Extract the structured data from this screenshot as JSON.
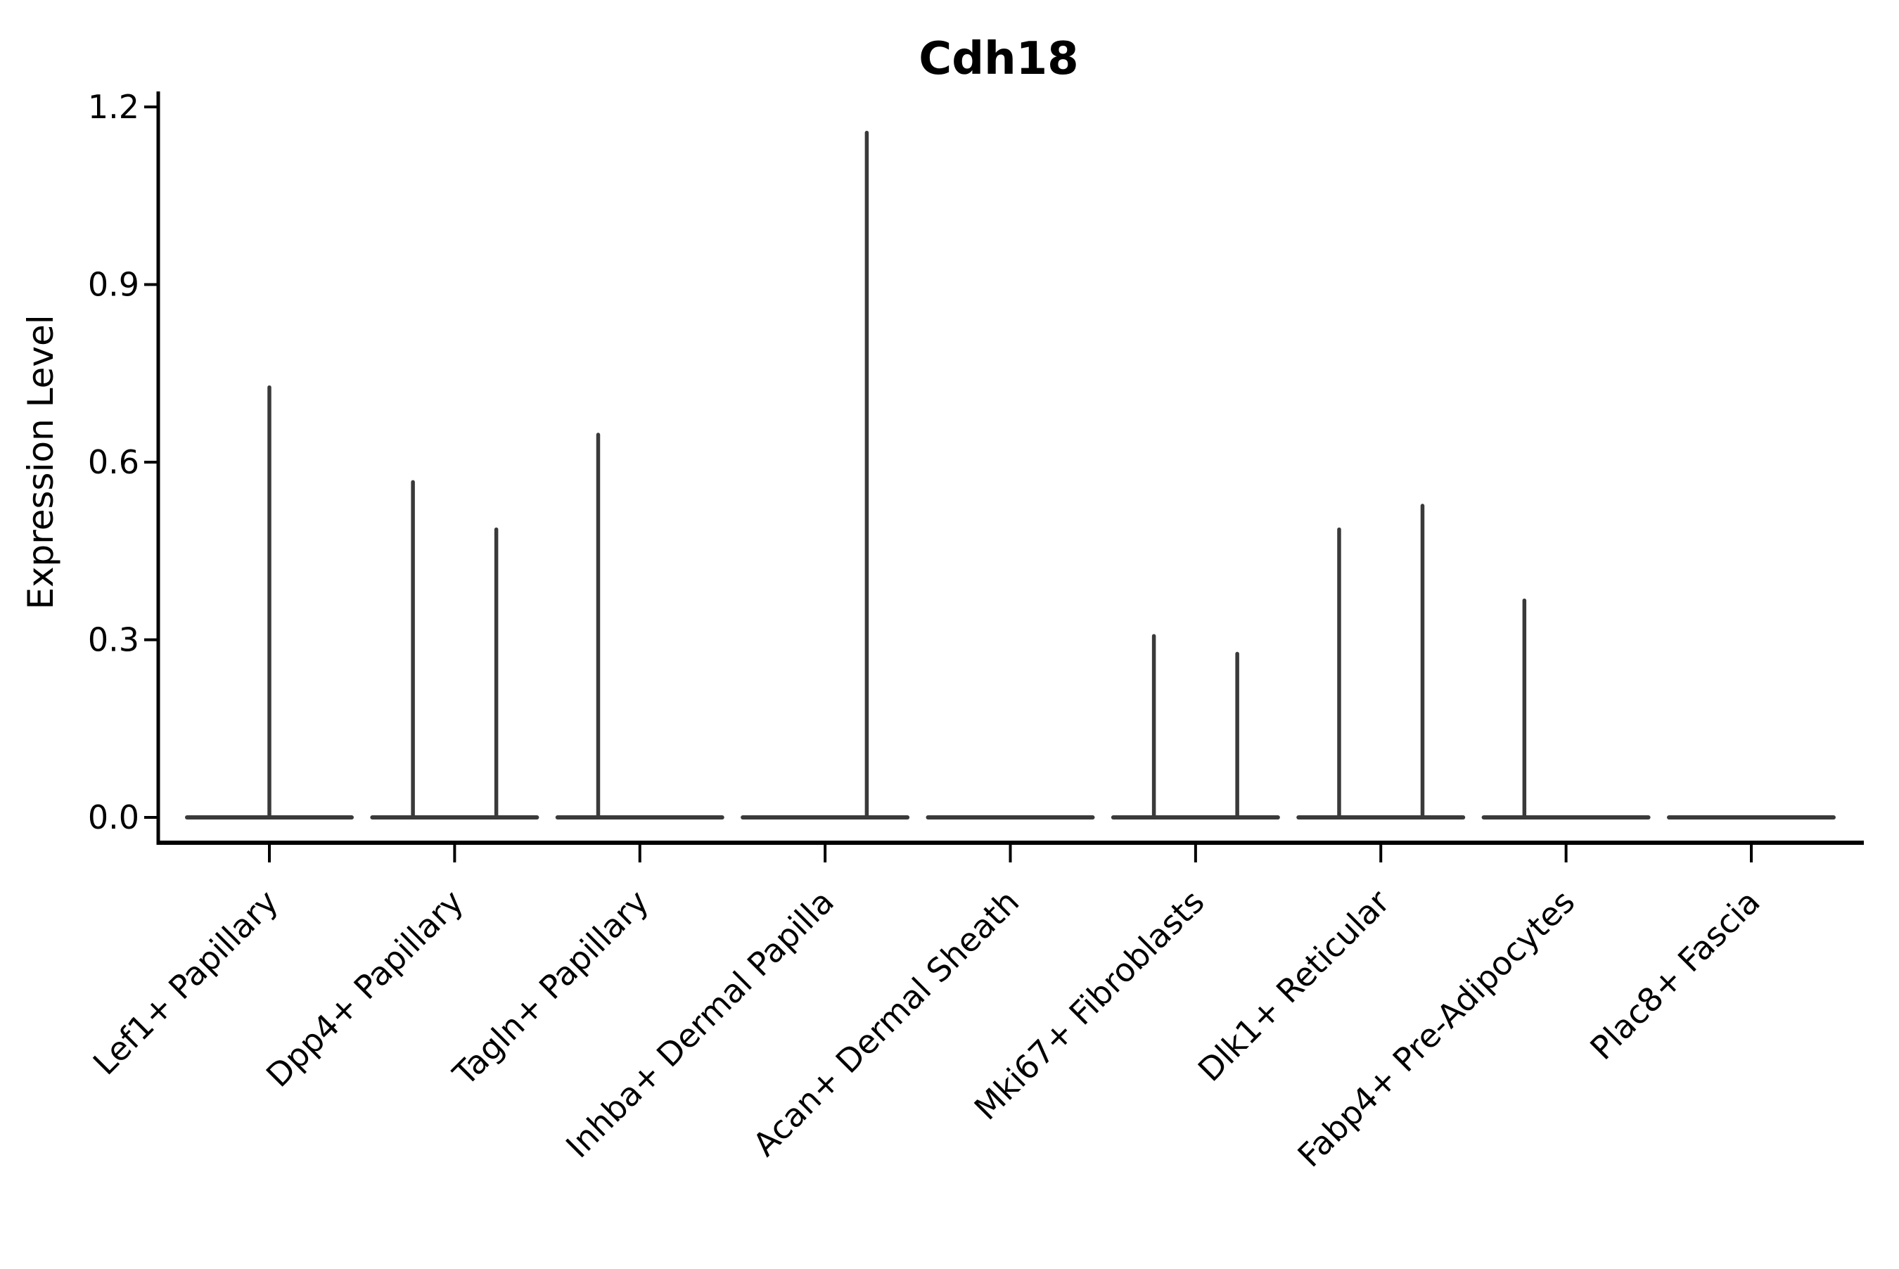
{
  "figure": {
    "background": "#ffffff"
  },
  "chart_data": {
    "type": "violin",
    "title": "Cdh18",
    "ylabel": "Expression Level",
    "xlabel": "",
    "ylim": [
      0,
      1.2
    ],
    "yticks": [
      0.0,
      0.3,
      0.6,
      0.9,
      1.2
    ],
    "ytick_labels": [
      "0.0",
      "0.3",
      "0.6",
      "0.9",
      "1.2"
    ],
    "grid": false,
    "legend": false,
    "categories": [
      "Lef1+ Papillary",
      "Dpp4+ Papillary",
      "Tagln+ Papillary",
      "Inhba+ Dermal Papilla",
      "Acan+ Dermal Sheath",
      "Mki67+ Fibroblasts",
      "Dlk1+ Reticular",
      "Fabp4+ Pre-Adipocytes",
      "Plac8+ Fascia"
    ],
    "baseline_value": 0.0,
    "violins": [
      {
        "category": "Lef1+ Papillary",
        "spikes": [
          {
            "offset": 0.0,
            "peak": 0.73
          }
        ]
      },
      {
        "category": "Dpp4+ Papillary",
        "spikes": [
          {
            "offset": -0.225,
            "peak": 0.57
          },
          {
            "offset": 0.225,
            "peak": 0.49
          }
        ]
      },
      {
        "category": "Tagln+ Papillary",
        "spikes": [
          {
            "offset": -0.225,
            "peak": 0.65
          }
        ]
      },
      {
        "category": "Inhba+ Dermal Papilla",
        "spikes": [
          {
            "offset": 0.225,
            "peak": 1.16
          }
        ]
      },
      {
        "category": "Acan+ Dermal Sheath",
        "spikes": []
      },
      {
        "category": "Mki67+ Fibroblasts",
        "spikes": [
          {
            "offset": -0.225,
            "peak": 0.31
          },
          {
            "offset": 0.225,
            "peak": 0.28
          }
        ]
      },
      {
        "category": "Dlk1+ Reticular",
        "spikes": [
          {
            "offset": -0.225,
            "peak": 0.49
          },
          {
            "offset": 0.225,
            "peak": 0.53
          }
        ]
      },
      {
        "category": "Fabp4+ Pre-Adipocytes",
        "spikes": [
          {
            "offset": -0.225,
            "peak": 0.37
          }
        ]
      },
      {
        "category": "Plac8+ Fascia",
        "spikes": []
      }
    ],
    "colors": {
      "violin": "#3a3a3a",
      "axis": "#000000",
      "text": "#000000"
    }
  }
}
